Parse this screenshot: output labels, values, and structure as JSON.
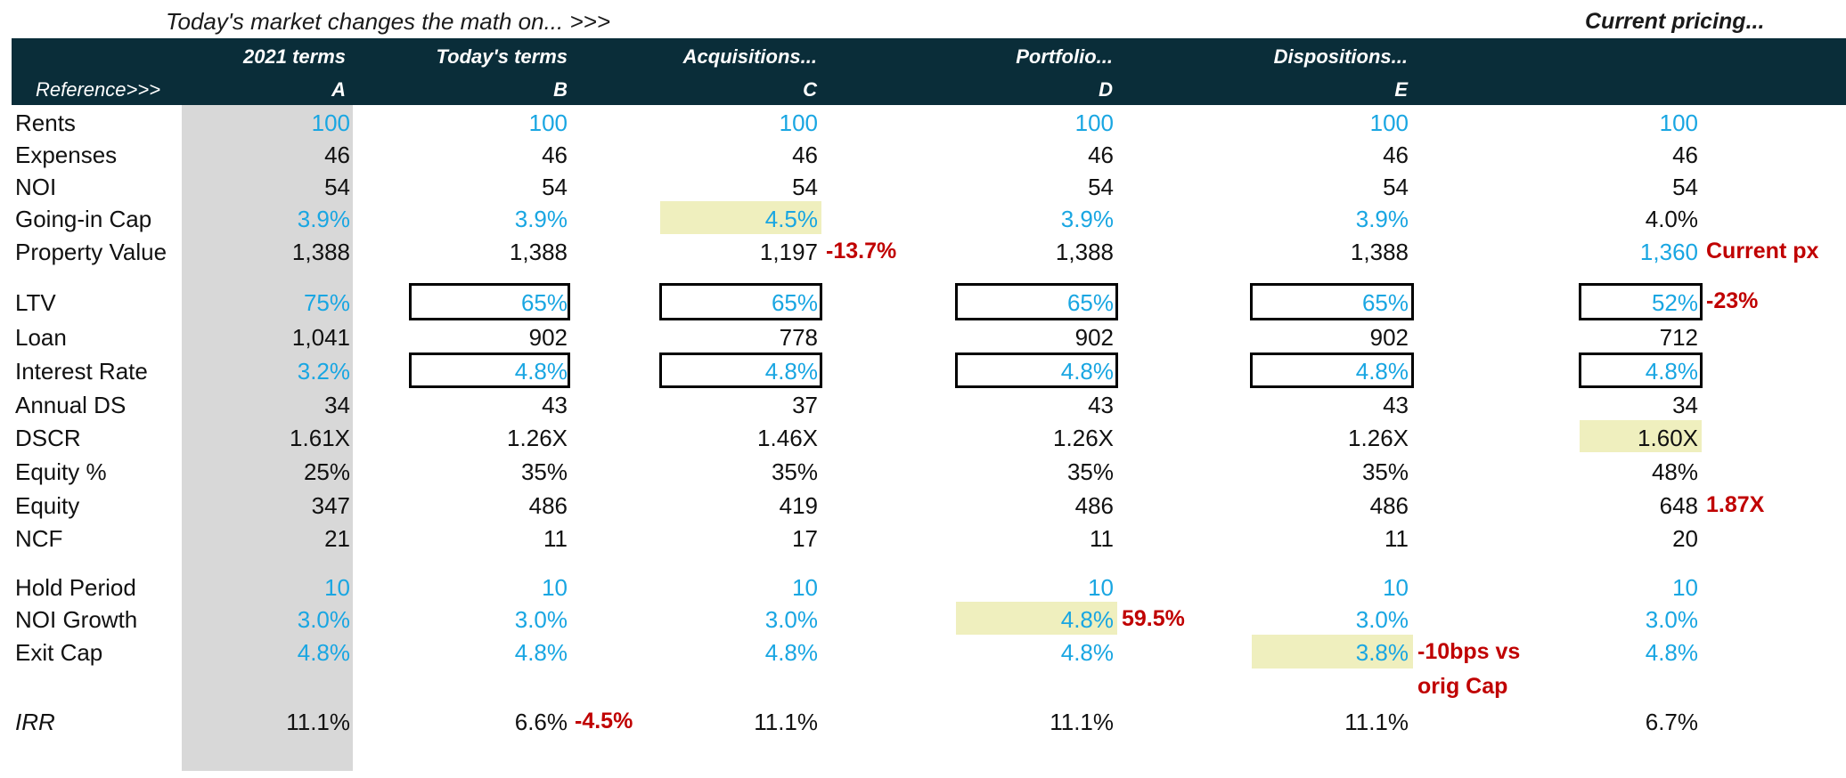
{
  "intro": {
    "left": "Today's market changes the math on... >>>",
    "right": "Current pricing..."
  },
  "headers": {
    "reference_label": "Reference>>>",
    "columns": [
      {
        "title": "2021 terms",
        "ref": "A"
      },
      {
        "title": "Today's terms",
        "ref": "B"
      },
      {
        "title": "Acquisitions...",
        "ref": "C"
      },
      {
        "title": "Portfolio...",
        "ref": "D"
      },
      {
        "title": "Dispositions...",
        "ref": "E"
      },
      {
        "title": "",
        "ref": ""
      }
    ]
  },
  "rows": [
    {
      "label": "Rents",
      "values": [
        "100",
        "100",
        "100",
        "100",
        "100",
        "100"
      ]
    },
    {
      "label": "Expenses",
      "values": [
        "46",
        "46",
        "46",
        "46",
        "46",
        "46"
      ]
    },
    {
      "label": "NOI",
      "values": [
        "54",
        "54",
        "54",
        "54",
        "54",
        "54"
      ]
    },
    {
      "label": "Going-in Cap",
      "values": [
        "3.9%",
        "3.9%",
        "4.5%",
        "3.9%",
        "3.9%",
        "4.0%"
      ]
    },
    {
      "label": "Property Value",
      "values": [
        "1,388",
        "1,388",
        "1,197",
        "1,388",
        "1,388",
        "1,360"
      ]
    },
    {
      "label": "LTV",
      "values": [
        "75%",
        "65%",
        "65%",
        "65%",
        "65%",
        "52%"
      ]
    },
    {
      "label": "Loan",
      "values": [
        "1,041",
        "902",
        "778",
        "902",
        "902",
        "712"
      ]
    },
    {
      "label": "Interest Rate",
      "values": [
        "3.2%",
        "4.8%",
        "4.8%",
        "4.8%",
        "4.8%",
        "4.8%"
      ]
    },
    {
      "label": "Annual DS",
      "values": [
        "34",
        "43",
        "37",
        "43",
        "43",
        "34"
      ]
    },
    {
      "label": "DSCR",
      "values": [
        "1.61X",
        "1.26X",
        "1.46X",
        "1.26X",
        "1.26X",
        "1.60X"
      ]
    },
    {
      "label": "Equity %",
      "values": [
        "25%",
        "35%",
        "35%",
        "35%",
        "35%",
        "48%"
      ]
    },
    {
      "label": "Equity",
      "values": [
        "347",
        "486",
        "419",
        "486",
        "486",
        "648"
      ]
    },
    {
      "label": "NCF",
      "values": [
        "21",
        "11",
        "17",
        "11",
        "11",
        "20"
      ]
    },
    {
      "label": "Hold Period",
      "values": [
        "10",
        "10",
        "10",
        "10",
        "10",
        "10"
      ]
    },
    {
      "label": "NOI Growth",
      "values": [
        "3.0%",
        "3.0%",
        "3.0%",
        "4.8%",
        "3.0%",
        "3.0%"
      ]
    },
    {
      "label": "Exit Cap",
      "values": [
        "4.8%",
        "4.8%",
        "4.8%",
        "4.8%",
        "3.8%",
        "4.8%"
      ]
    },
    {
      "label": "IRR",
      "values": [
        "11.1%",
        "6.6%",
        "11.1%",
        "11.1%",
        "11.1%",
        "6.7%"
      ]
    }
  ],
  "annotations": {
    "property_value_c": "-13.7%",
    "current_px": "Current px",
    "ltv_current": "-23%",
    "equity_current": "1.87X",
    "noi_growth_d": "59.5%",
    "exit_cap_e_line1": "-10bps vs",
    "exit_cap_e_line2": "orig Cap",
    "irr_b": "-4.5%"
  },
  "colors": {
    "header_band": "#0a2d39",
    "input_blue": "#19a6e2",
    "annotation_red": "#c00000",
    "highlight": "#efefbe",
    "reference_shade": "#d8d8d8"
  }
}
